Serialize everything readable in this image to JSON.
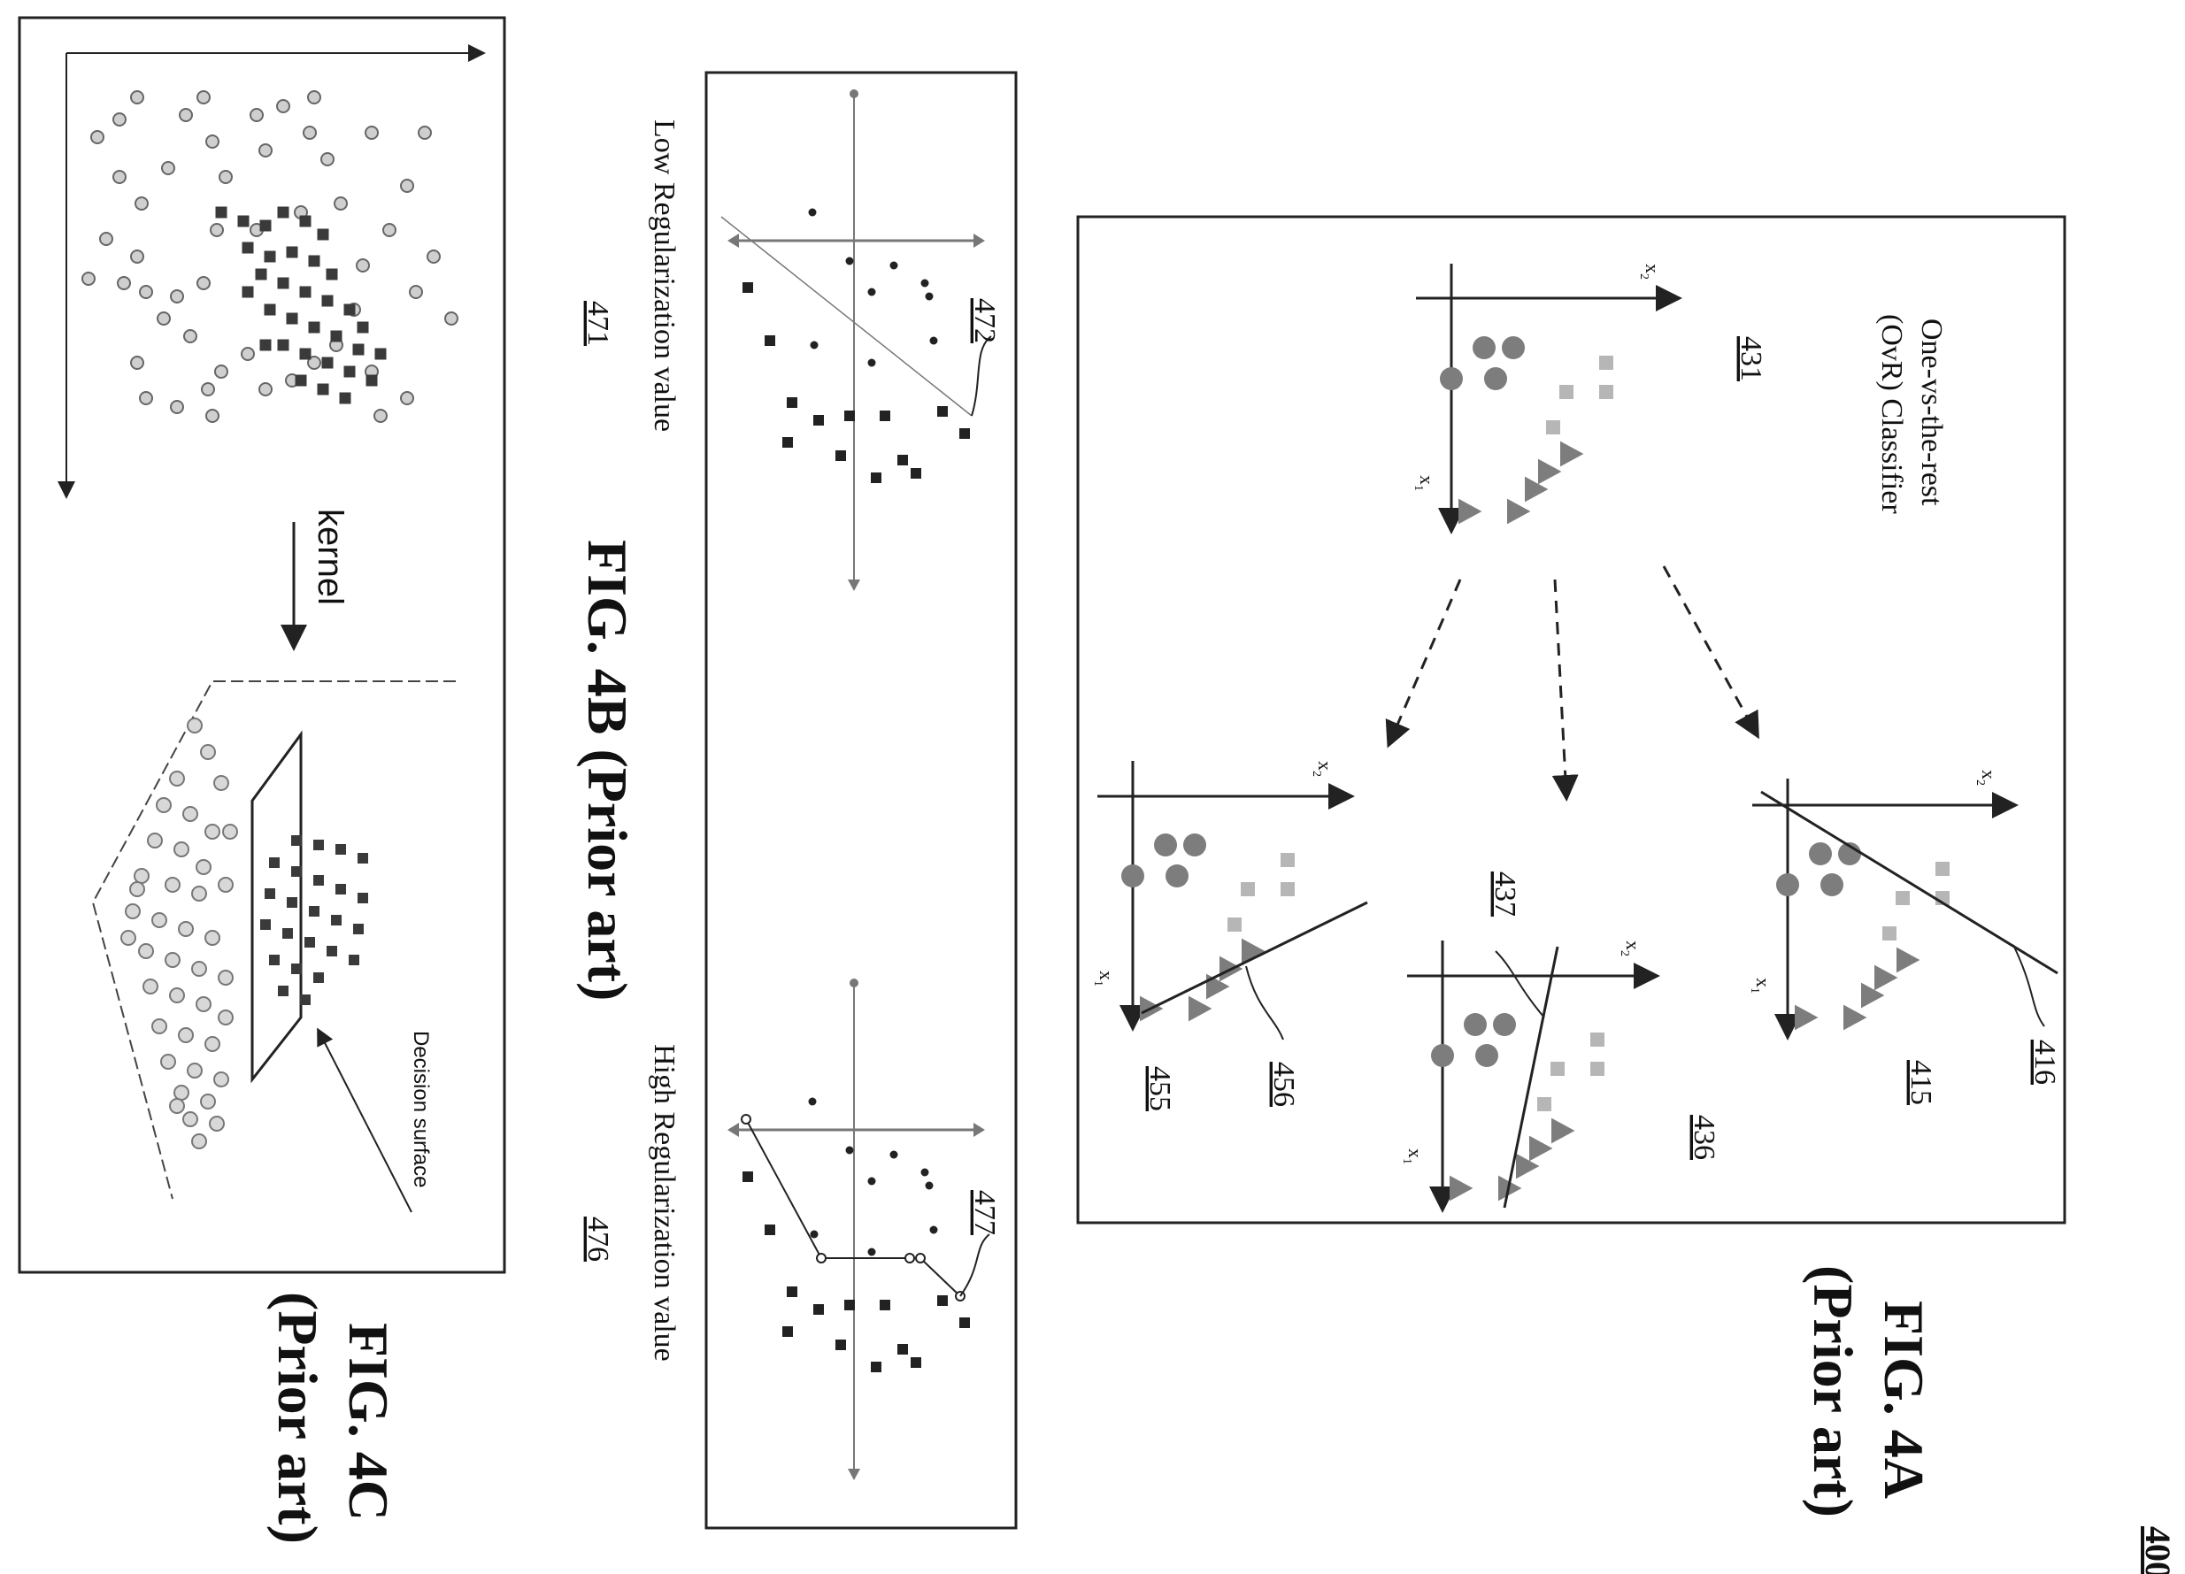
{
  "sheet_number": "400",
  "fig4a": {
    "caption_line1": "FIG. 4A",
    "caption_line2": "(Prior art)",
    "classifier_title_line1": "One-vs-the-rest",
    "classifier_title_line2": "(OvR) Classifier",
    "ref_main_plot": "431",
    "ref_plot_top": "415",
    "ref_line_top": "416",
    "ref_plot_mid": "436",
    "ref_line_mid": "437",
    "ref_plot_bottom": "455",
    "ref_line_bottom": "456",
    "axis_x1": "x",
    "axis_x1_sub": "1",
    "axis_x2": "x",
    "axis_x2_sub": "2"
  },
  "fig4b": {
    "caption": "FIG. 4B (Prior art)",
    "low_label": "Low Regularization value",
    "low_ref": "471",
    "low_line_ref": "472",
    "high_label": "High Regularization value",
    "high_ref": "476",
    "high_line_ref": "477"
  },
  "fig4c": {
    "caption_line1": "FIG. 4C",
    "caption_line2": "(Prior art)",
    "kernel_label": "kernel",
    "decision_surface_label": "Decision surface"
  }
}
